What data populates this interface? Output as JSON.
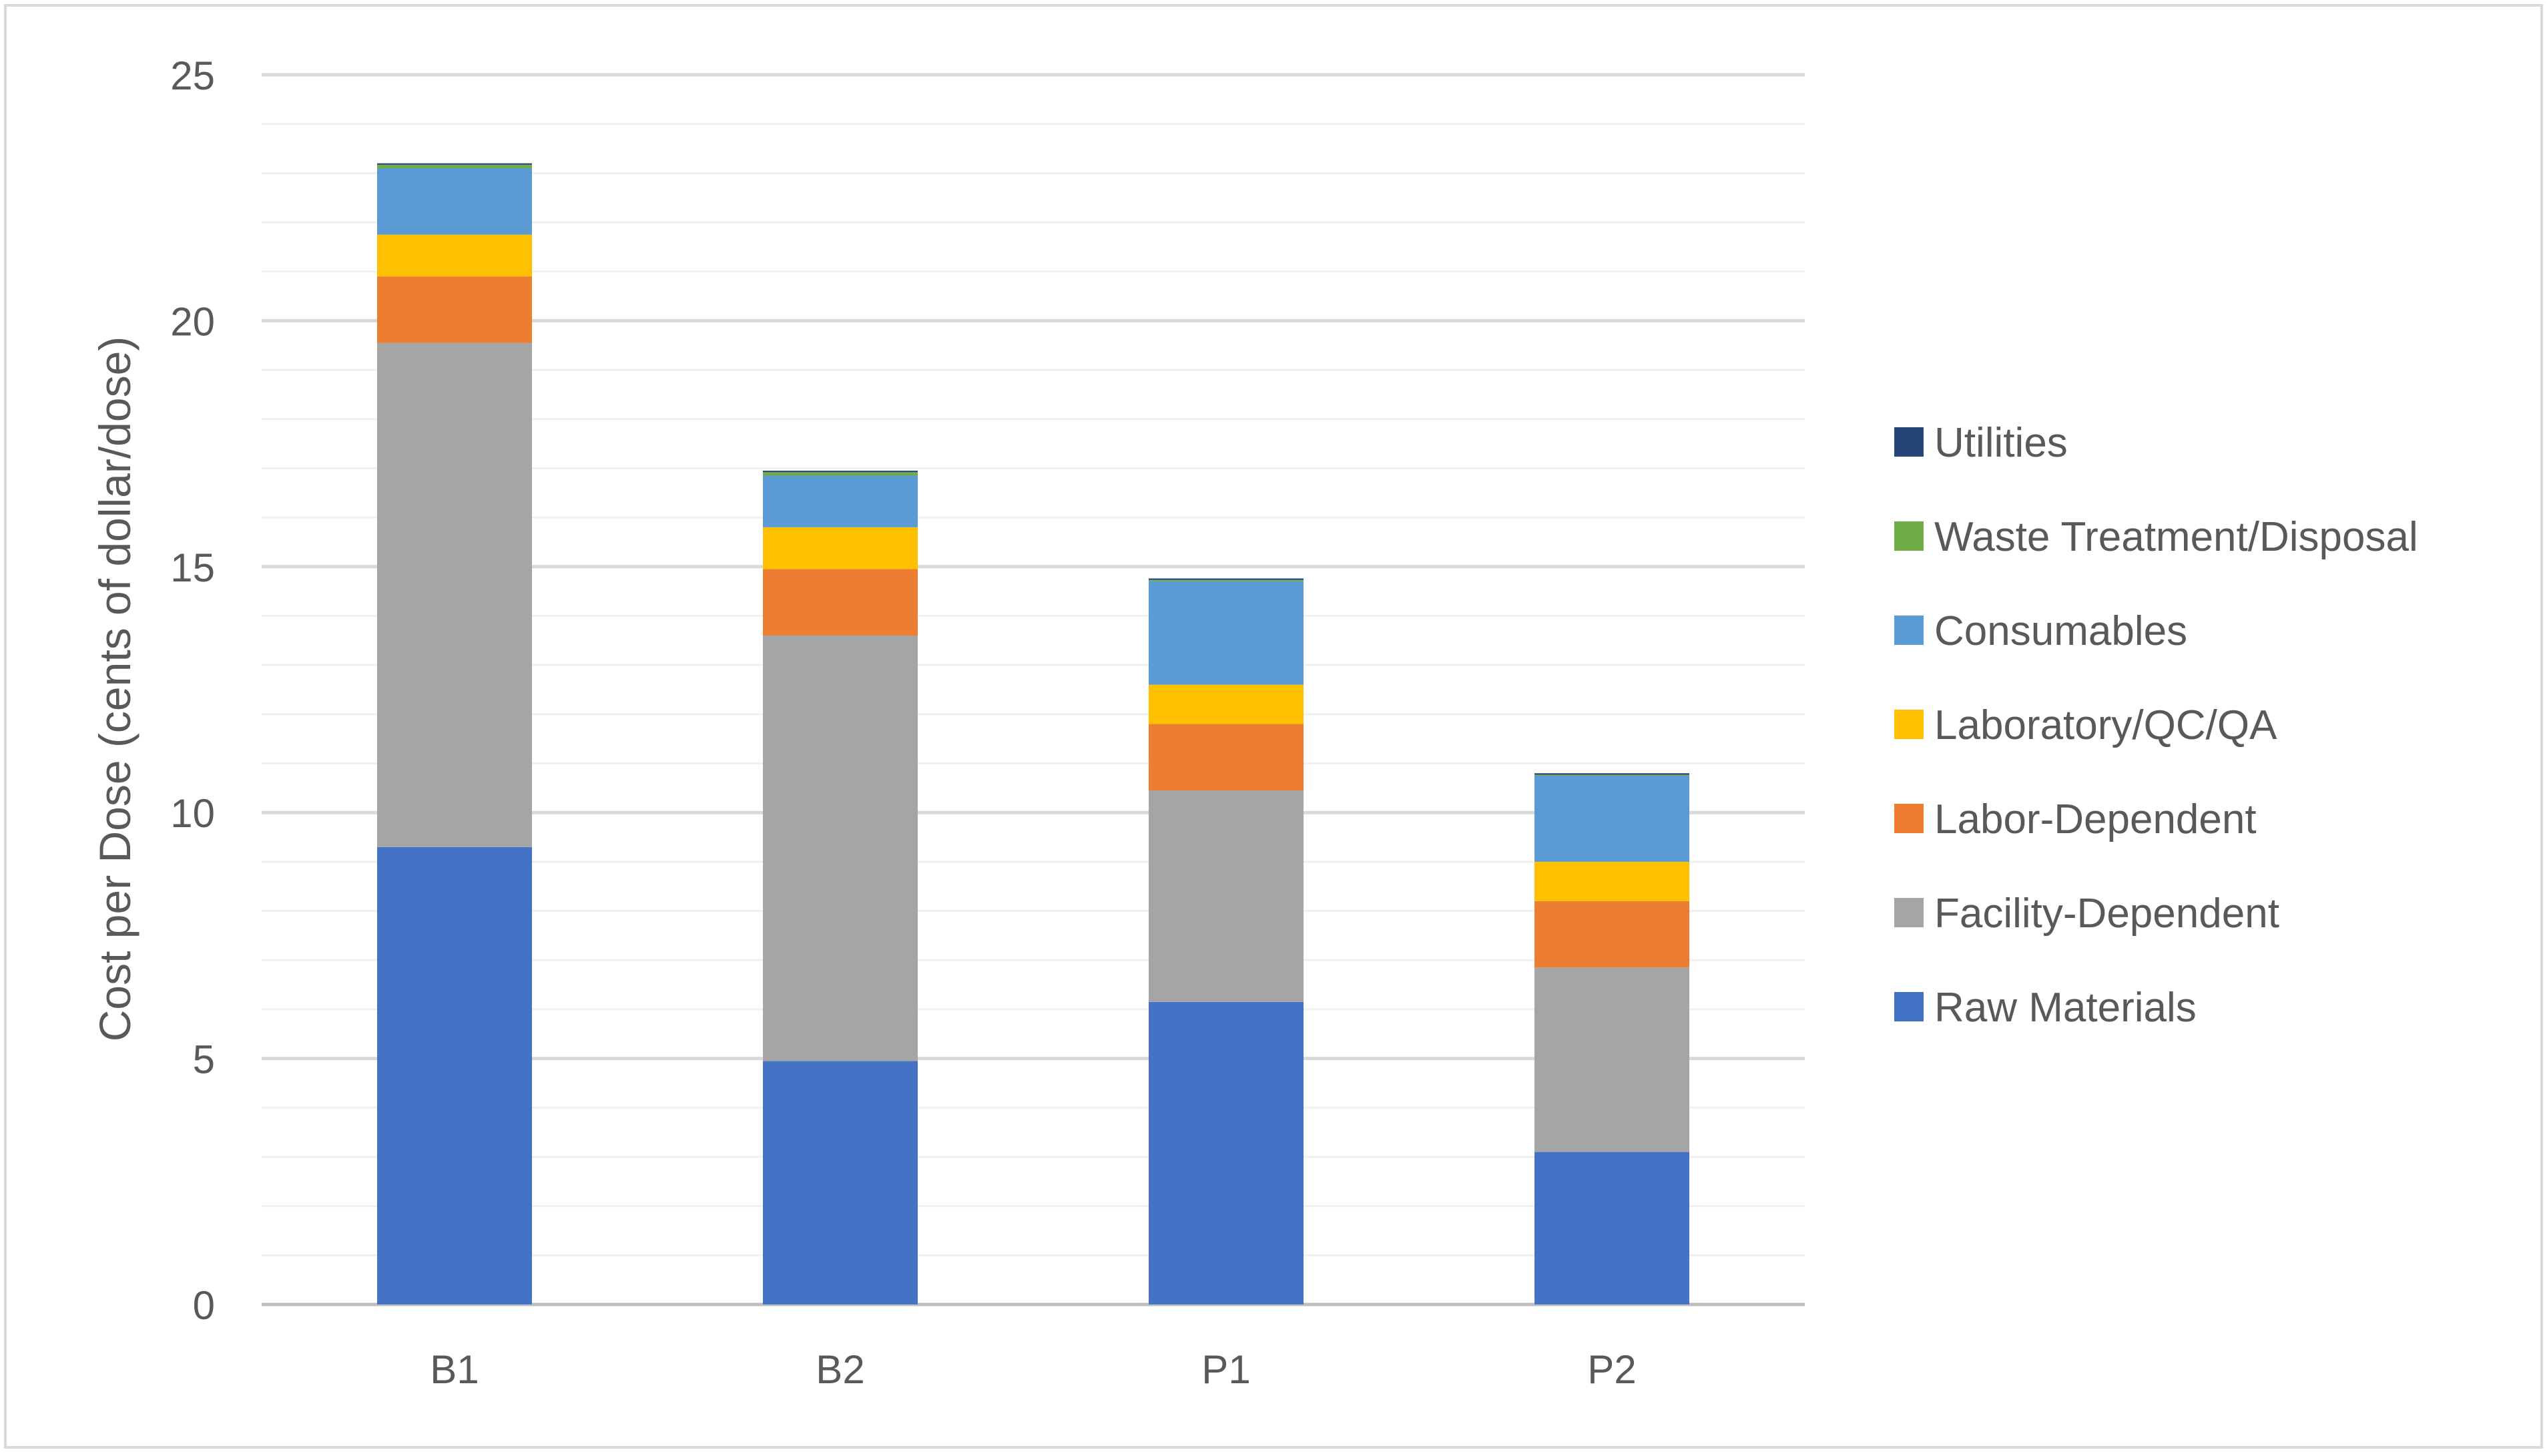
{
  "chart_data": {
    "type": "bar",
    "stacked": true,
    "title": "",
    "xlabel": "",
    "ylabel": "Cost per Dose (cents of dollar/dose)",
    "categories": [
      "B1",
      "B2",
      "P1",
      "P2"
    ],
    "ylim": [
      0,
      25
    ],
    "yticks": [
      0,
      5,
      10,
      15,
      20,
      25
    ],
    "ytick_labels": [
      "0",
      "5",
      "10",
      "15",
      "20",
      "25"
    ],
    "grid": true,
    "legend_position": "right",
    "series": [
      {
        "name": "Raw Materials",
        "color": "#4472C4",
        "values": [
          9.3,
          4.95,
          6.15,
          3.1
        ]
      },
      {
        "name": "Facility-Dependent",
        "color": "#A5A5A5",
        "values": [
          10.25,
          8.65,
          4.3,
          3.75
        ]
      },
      {
        "name": "Labor-Dependent",
        "color": "#ED7D31",
        "values": [
          1.35,
          1.35,
          1.35,
          1.35
        ]
      },
      {
        "name": "Laboratory/QC/QA",
        "color": "#FFC000",
        "values": [
          0.85,
          0.85,
          0.8,
          0.8
        ]
      },
      {
        "name": "Consumables",
        "color": "#5B9BD5",
        "values": [
          1.35,
          1.05,
          2.1,
          1.75
        ]
      },
      {
        "name": "Waste Treatment/Disposal",
        "color": "#70AD47",
        "values": [
          0.07,
          0.07,
          0.03,
          0.02
        ]
      },
      {
        "name": "Utilities",
        "color": "#264478",
        "values": [
          0.03,
          0.03,
          0.03,
          0.03
        ]
      }
    ],
    "legend_order": [
      "Utilities",
      "Waste Treatment/Disposal",
      "Consumables",
      "Laboratory/QC/QA",
      "Labor-Dependent",
      "Facility-Dependent",
      "Raw Materials"
    ]
  }
}
